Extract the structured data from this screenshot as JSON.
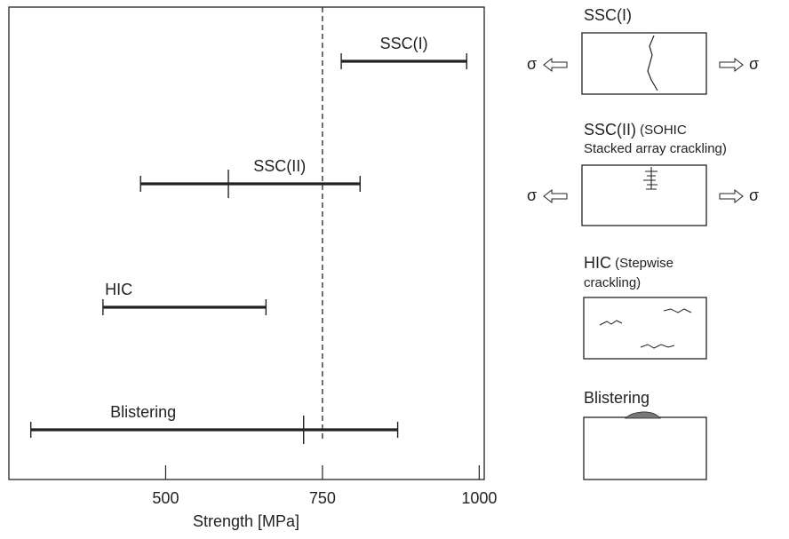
{
  "chart_data": {
    "type": "range",
    "xlabel": "Strength [MPa]",
    "xlim": [
      250,
      1008
    ],
    "xticks": [
      500,
      750,
      1000
    ],
    "reference_line": 750,
    "color": "#222222",
    "series": [
      {
        "name": "SSC(I)",
        "low": 780,
        "high": 980
      },
      {
        "name": "SSC(II)",
        "low": 460,
        "mid": 600,
        "high": 810
      },
      {
        "name": "HIC",
        "low": 400,
        "high": 660
      },
      {
        "name": "Blistering",
        "low": 285,
        "mid": 720,
        "high": 870
      }
    ]
  },
  "diagrams": {
    "stress_symbol": "σ",
    "panels": [
      {
        "title": "SSC(I)"
      },
      {
        "title": "SSC(II)",
        "note": " (SOHIC",
        "note_line2": "Stacked array crackling)"
      },
      {
        "title": "HIC",
        "note": " (Stepwise",
        "note_line2": "crackling)"
      },
      {
        "title": "Blistering"
      }
    ]
  }
}
